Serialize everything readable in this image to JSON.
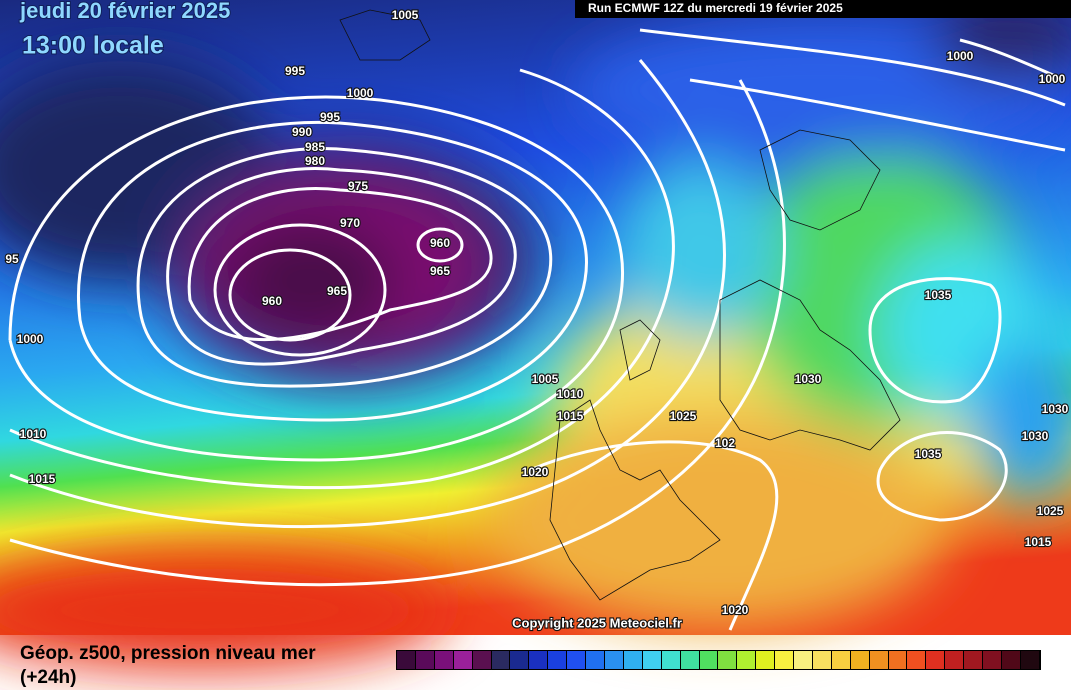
{
  "header": {
    "date": "jeudi 20 février 2025",
    "time": "13:00 locale",
    "run": "Run ECMWF 12Z du mercredi 19 février 2025"
  },
  "isobar_labels": [
    "1005",
    "995",
    "1000",
    "995",
    "990",
    "985",
    "980",
    "975",
    "970",
    "960",
    "965",
    "965",
    "960",
    "95",
    "1000",
    "1005",
    "1010",
    "1015",
    "1025",
    "1030",
    "1035",
    "1030",
    "1030",
    "1035",
    "1020",
    "1010",
    "1015",
    "102",
    "1025",
    "1015",
    "1020",
    "1000",
    "1000"
  ],
  "copyright": "Copyright 2025 Meteociel.fr",
  "legend": {
    "title": "Géop. z500, pression niveau mer",
    "subtitle": "(+24h)"
  }
}
